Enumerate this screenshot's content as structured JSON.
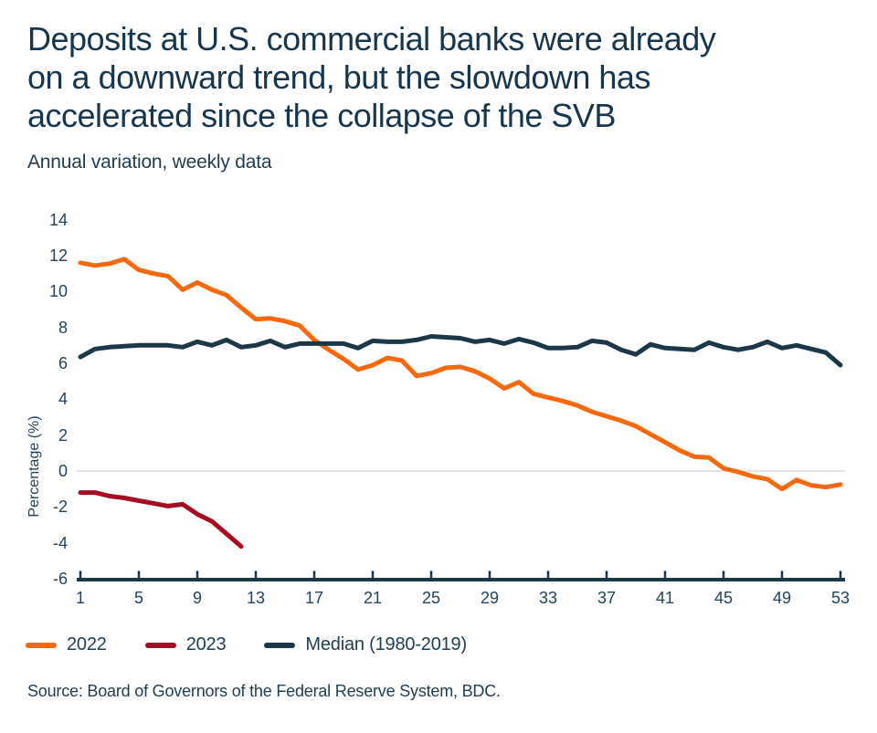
{
  "header": {
    "title": "Deposits at U.S. commercial banks were already on a downward trend, but the slowdown has accelerated since the collapse of the SVB",
    "title_lines": [
      "Deposits at U.S. commercial banks were already",
      "on a downward trend, but the slowdown has",
      "accelerated since the collapse of the SVB"
    ],
    "subtitle": "Annual variation, weekly data"
  },
  "chart_data": {
    "type": "line",
    "x_unit": "week",
    "x_range": [
      1,
      53
    ],
    "x_ticks": [
      1,
      5,
      9,
      13,
      17,
      21,
      25,
      29,
      33,
      37,
      41,
      45,
      49,
      53
    ],
    "xlabel": "",
    "ylabel": "Percentage (%)",
    "y_ticks": [
      14,
      12,
      10,
      8,
      6,
      4,
      2,
      0,
      -2,
      -4,
      -6
    ],
    "ylim": [
      -6,
      14
    ],
    "grid": "zero-line-only",
    "legend_position": "bottom",
    "series": [
      {
        "name": "2022",
        "key": "2022",
        "color": "#F8690D",
        "values": [
          11.6,
          11.45,
          11.55,
          11.8,
          11.2,
          11.0,
          10.85,
          10.1,
          10.5,
          10.1,
          9.8,
          9.1,
          8.45,
          8.5,
          8.35,
          8.1,
          7.3,
          6.75,
          6.25,
          5.65,
          5.9,
          6.3,
          6.15,
          5.3,
          5.45,
          5.75,
          5.8,
          5.55,
          5.15,
          4.6,
          4.95,
          4.3,
          4.1,
          3.9,
          3.65,
          3.3,
          3.05,
          2.8,
          2.5,
          2.05,
          1.6,
          1.15,
          0.8,
          0.75,
          0.15,
          -0.05,
          -0.3,
          -0.45,
          -1.0,
          -0.5,
          -0.8,
          -0.9,
          -0.75
        ]
      },
      {
        "name": "2023",
        "key": "2023",
        "color": "#A60C23",
        "values": [
          -1.2,
          -1.2,
          -1.4,
          -1.5,
          -1.65,
          -1.8,
          -1.95,
          -1.85,
          -2.4,
          -2.8,
          -3.5,
          -4.2
        ]
      },
      {
        "name": "Median (1980-2019)",
        "key": "median",
        "color": "#1C3848",
        "values": [
          6.35,
          6.8,
          6.9,
          6.95,
          7.0,
          7.0,
          7.0,
          6.9,
          7.2,
          7.0,
          7.3,
          6.9,
          7.0,
          7.25,
          6.9,
          7.1,
          7.1,
          7.1,
          7.1,
          6.85,
          7.25,
          7.2,
          7.2,
          7.3,
          7.5,
          7.45,
          7.4,
          7.2,
          7.3,
          7.1,
          7.35,
          7.15,
          6.85,
          6.85,
          6.9,
          7.25,
          7.15,
          6.75,
          6.5,
          7.05,
          6.85,
          6.8,
          6.75,
          7.15,
          6.9,
          6.75,
          6.9,
          7.2,
          6.85,
          7.0,
          6.8,
          6.6,
          5.9
        ]
      }
    ]
  },
  "source": "Source: Board of Governors of the Federal Reserve System, BDC.",
  "colors": {
    "title_text": "#17364D",
    "tick_label": "#24435A",
    "axis": "#1C3848",
    "zero_line": "#DCDCDA",
    "background": "#FFFFFF"
  }
}
